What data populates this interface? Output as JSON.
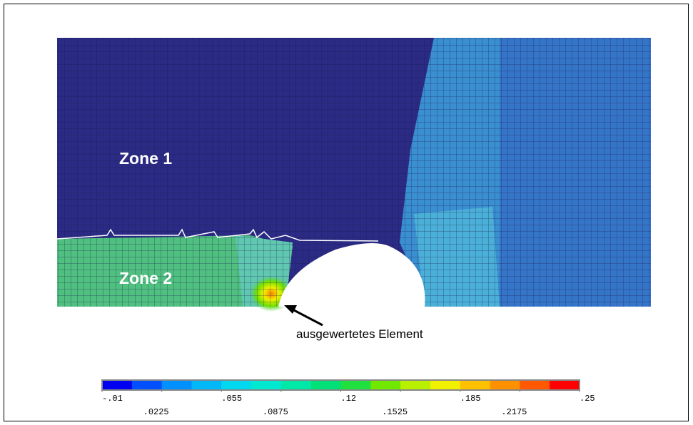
{
  "labels": {
    "zone1": "Zone 1",
    "zone2": "Zone 2",
    "annotation": "ausgewertetes Element"
  },
  "colorbar": {
    "colors": [
      "#0000f0",
      "#0050ff",
      "#0090ff",
      "#00b8f8",
      "#00d8f0",
      "#00e8d0",
      "#00e8a8",
      "#00e078",
      "#20e040",
      "#70e800",
      "#b8f000",
      "#f0f000",
      "#ffc000",
      "#ff9000",
      "#ff5800",
      "#ff0000"
    ],
    "ticks": [
      {
        "value": -0.01,
        "label": "-.01"
      },
      {
        "value": 0.0225,
        "label": ".0225"
      },
      {
        "value": 0.055,
        "label": ".055"
      },
      {
        "value": 0.0875,
        "label": ".0875"
      },
      {
        "value": 0.12,
        "label": ".12"
      },
      {
        "value": 0.1525,
        "label": ".1525"
      },
      {
        "value": 0.185,
        "label": ".185"
      },
      {
        "value": 0.2175,
        "label": ".2175"
      },
      {
        "value": 0.25,
        "label": ".25"
      }
    ]
  }
}
